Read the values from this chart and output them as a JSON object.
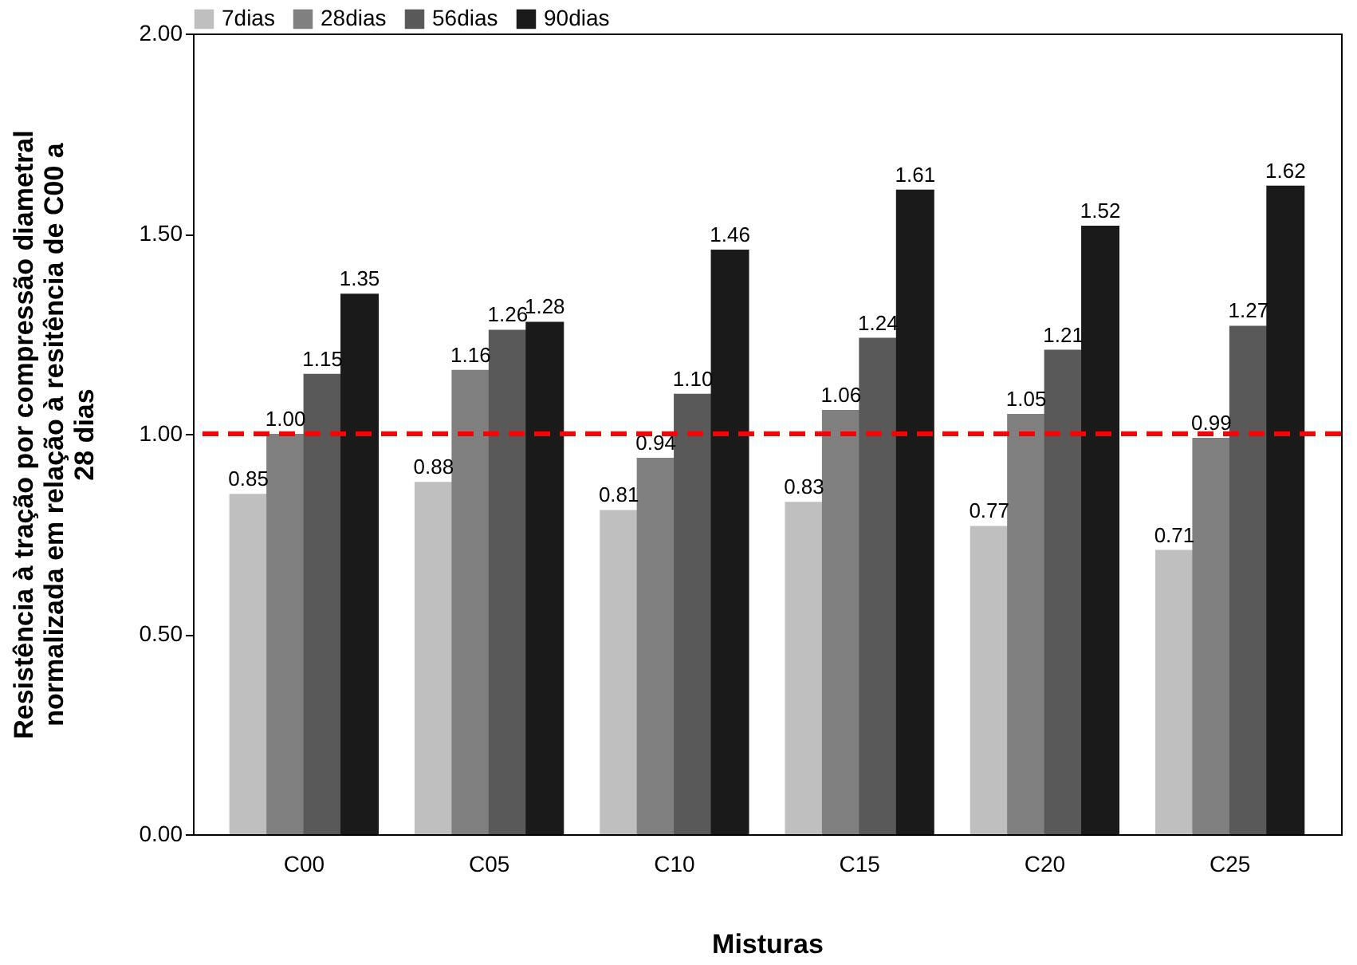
{
  "chart_data": {
    "type": "bar",
    "xlabel": "Misturas",
    "ylabel": "Resistência à tração por compressão diametral normalizada em relação à resitência de C00 a 28 dias",
    "categories": [
      "C00",
      "C05",
      "C10",
      "C15",
      "C20",
      "C25"
    ],
    "series": [
      {
        "name": "7dias",
        "color": "#bfbfbf",
        "values": [
          0.85,
          0.88,
          0.81,
          0.83,
          0.77,
          0.71
        ],
        "value_labels": [
          "0.85",
          "0.88",
          "0.81",
          "0.83",
          "0.77",
          "0.71"
        ]
      },
      {
        "name": "28dias",
        "color": "#808080",
        "values": [
          1.0,
          1.16,
          0.94,
          1.06,
          1.05,
          0.99
        ],
        "value_labels": [
          "1.00",
          "1.16",
          "0.94",
          "1.06",
          "1.05",
          "0.99"
        ]
      },
      {
        "name": "56dias",
        "color": "#595959",
        "values": [
          1.15,
          1.26,
          1.1,
          1.24,
          1.21,
          1.27
        ],
        "value_labels": [
          "1.15",
          "1.26",
          "1.10",
          "1.24",
          "1.21",
          "1.27"
        ]
      },
      {
        "name": "90dias",
        "color": "#1a1a1a",
        "values": [
          1.35,
          1.28,
          1.46,
          1.61,
          1.52,
          1.62
        ],
        "value_labels": [
          "1.35",
          "1.28",
          "1.46",
          "1.61",
          "1.52",
          "1.62"
        ]
      }
    ],
    "ylim": [
      0,
      2
    ],
    "yticks": [
      {
        "value": 0,
        "label": "0.00"
      },
      {
        "value": 0.5,
        "label": "0.50"
      },
      {
        "value": 1,
        "label": "1.00"
      },
      {
        "value": 1.5,
        "label": "1.50"
      },
      {
        "value": 2,
        "label": "2.00"
      }
    ],
    "ref_lines": [
      {
        "axis": "y",
        "value": 1,
        "color": "#ff0000",
        "line_style": "dashed"
      }
    ],
    "legend": "top",
    "grid": false
  }
}
